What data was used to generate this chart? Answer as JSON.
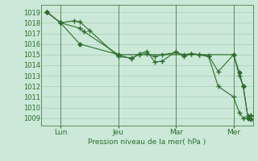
{
  "bg_color": "#cce8d8",
  "grid_color": "#aaccb8",
  "line_color": "#2d6e2d",
  "title": "Pression niveau de la mer( hPa )",
  "ylim": [
    1008.3,
    1019.7
  ],
  "yticks": [
    1009,
    1010,
    1011,
    1012,
    1013,
    1014,
    1015,
    1016,
    1017,
    1018,
    1019
  ],
  "xtick_labels": [
    "Lun",
    "Jeu",
    "Mar",
    "Mer"
  ],
  "xtick_positions": [
    1,
    4,
    7,
    10
  ],
  "xlim": [
    0,
    11
  ],
  "series1_x": [
    0.3,
    1,
    2,
    2.2,
    4,
    4.7,
    5.1,
    5.5,
    5.9,
    6.3,
    7,
    7.4,
    7.8,
    8.2,
    8.7,
    9.2,
    10,
    10.3,
    10.5,
    10.75,
    10.9
  ],
  "series1_y": [
    1019.0,
    1018.0,
    1017.5,
    1017.2,
    1015.0,
    1014.6,
    1015.1,
    1015.3,
    1014.3,
    1014.4,
    1015.3,
    1014.8,
    1015.1,
    1015.0,
    1014.9,
    1013.4,
    1015.0,
    1013.0,
    1012.0,
    1009.0,
    1009.2
  ],
  "series2_x": [
    0.3,
    1.0,
    1.7,
    2.0,
    2.5,
    4.0,
    4.7,
    5.1,
    5.5,
    5.9,
    6.3,
    7.0,
    7.4,
    7.8,
    8.2,
    8.7,
    9.2,
    10.0,
    10.3,
    10.5,
    10.75,
    10.9
  ],
  "series2_y": [
    1019.0,
    1018.0,
    1018.2,
    1018.1,
    1017.3,
    1014.8,
    1014.7,
    1015.0,
    1015.1,
    1014.8,
    1015.0,
    1015.2,
    1015.0,
    1015.1,
    1015.0,
    1014.8,
    1012.0,
    1011.0,
    1009.5,
    1009.0,
    1009.2,
    1009.3
  ],
  "series3_x": [
    0.3,
    1.0,
    2.0,
    4.0,
    10.0,
    10.3,
    10.5,
    10.75,
    10.9
  ],
  "series3_y": [
    1019.0,
    1018.0,
    1016.0,
    1015.0,
    1015.0,
    1013.3,
    1012.0,
    1009.0,
    1008.9
  ]
}
